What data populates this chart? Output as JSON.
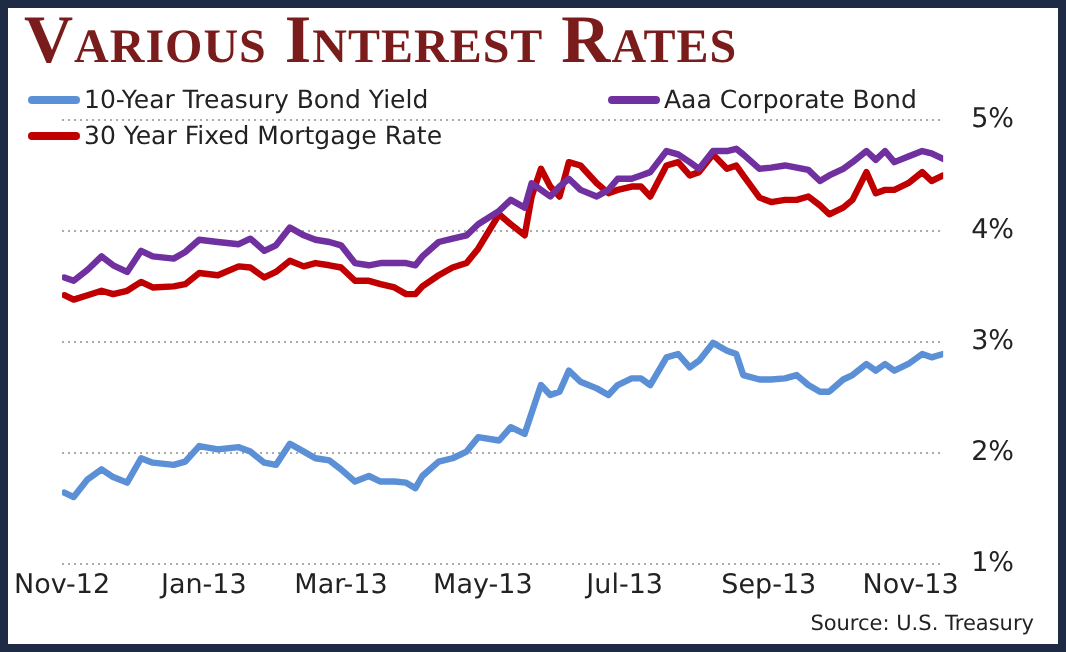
{
  "chart_data": {
    "type": "line",
    "title": "Various Interest Rates",
    "x": [
      "2012-11-02",
      "2012-11-06",
      "2012-11-12",
      "2012-11-18",
      "2012-11-23",
      "2012-11-29",
      "2012-12-05",
      "2012-12-10",
      "2012-12-19",
      "2012-12-24",
      "2012-12-30",
      "2013-01-07",
      "2013-01-16",
      "2013-01-21",
      "2013-01-27",
      "2013-02-01",
      "2013-02-07",
      "2013-02-13",
      "2013-02-18",
      "2013-02-24",
      "2013-03-01",
      "2013-03-07",
      "2013-03-13",
      "2013-03-18",
      "2013-03-24",
      "2013-03-29",
      "2013-04-02",
      "2013-04-05",
      "2013-04-12",
      "2013-04-18",
      "2013-04-24",
      "2013-04-29",
      "2013-05-08",
      "2013-05-13",
      "2013-05-19",
      "2013-05-22",
      "2013-05-26",
      "2013-05-30",
      "2013-06-03",
      "2013-06-07",
      "2013-06-12",
      "2013-06-19",
      "2013-06-24",
      "2013-06-28",
      "2013-07-04",
      "2013-07-08",
      "2013-07-12",
      "2013-07-19",
      "2013-07-24",
      "2013-07-29",
      "2013-08-02",
      "2013-08-08",
      "2013-08-14",
      "2013-08-18",
      "2013-08-21",
      "2013-08-28",
      "2013-09-02",
      "2013-09-08",
      "2013-09-13",
      "2013-09-18",
      "2013-09-23",
      "2013-09-27",
      "2013-10-03",
      "2013-10-07",
      "2013-10-13",
      "2013-10-17",
      "2013-10-21",
      "2013-10-25",
      "2013-10-31",
      "2013-11-06",
      "2013-11-10",
      "2013-11-15"
    ],
    "series": [
      {
        "name": "10-Year Treasury Bond Yield",
        "color": "#5b8fd6",
        "values": [
          1.64,
          1.6,
          1.76,
          1.85,
          1.78,
          1.73,
          1.95,
          1.91,
          1.89,
          1.92,
          2.06,
          2.03,
          2.05,
          2.01,
          1.91,
          1.89,
          2.08,
          2.01,
          1.95,
          1.93,
          1.85,
          1.74,
          1.79,
          1.74,
          1.74,
          1.73,
          1.68,
          1.79,
          1.92,
          1.95,
          2.01,
          2.14,
          2.11,
          2.23,
          2.17,
          2.36,
          2.61,
          2.52,
          2.55,
          2.74,
          2.64,
          2.58,
          2.52,
          2.61,
          2.67,
          2.67,
          2.61,
          2.86,
          2.89,
          2.77,
          2.83,
          2.99,
          2.92,
          2.89,
          2.7,
          2.66,
          2.66,
          2.67,
          2.7,
          2.61,
          2.55,
          2.55,
          2.66,
          2.7,
          2.8,
          2.74,
          2.8,
          2.74,
          2.8,
          2.89,
          2.86,
          2.89
        ]
      },
      {
        "name": "Aaa Corporate Bond",
        "color": "#7030a0",
        "values": [
          3.58,
          3.55,
          3.65,
          3.77,
          3.69,
          3.63,
          3.82,
          3.77,
          3.75,
          3.81,
          3.92,
          3.9,
          3.88,
          3.93,
          3.82,
          3.87,
          4.03,
          3.96,
          3.92,
          3.9,
          3.87,
          3.71,
          3.69,
          3.71,
          3.71,
          3.71,
          3.69,
          3.77,
          3.9,
          3.93,
          3.96,
          4.06,
          4.18,
          4.28,
          4.21,
          4.43,
          4.37,
          4.31,
          4.4,
          4.47,
          4.37,
          4.31,
          4.37,
          4.47,
          4.47,
          4.5,
          4.53,
          4.72,
          4.69,
          4.62,
          4.56,
          4.72,
          4.72,
          4.74,
          4.69,
          4.56,
          4.57,
          4.59,
          4.57,
          4.55,
          4.45,
          4.5,
          4.56,
          4.62,
          4.72,
          4.64,
          4.72,
          4.62,
          4.67,
          4.72,
          4.7,
          4.65
        ]
      },
      {
        "name": "30 Year Fixed Mortgage Rate",
        "color": "#c00000",
        "values": [
          3.42,
          3.38,
          3.42,
          3.46,
          3.43,
          3.46,
          3.54,
          3.49,
          3.5,
          3.52,
          3.62,
          3.6,
          3.68,
          3.67,
          3.58,
          3.63,
          3.73,
          3.68,
          3.71,
          3.69,
          3.67,
          3.55,
          3.55,
          3.52,
          3.49,
          3.43,
          3.43,
          3.5,
          3.6,
          3.67,
          3.71,
          3.84,
          4.15,
          4.06,
          3.96,
          4.31,
          4.56,
          4.4,
          4.31,
          4.62,
          4.59,
          4.43,
          4.34,
          4.37,
          4.4,
          4.4,
          4.31,
          4.59,
          4.62,
          4.5,
          4.53,
          4.69,
          4.56,
          4.59,
          4.5,
          4.3,
          4.26,
          4.28,
          4.28,
          4.31,
          4.23,
          4.15,
          4.21,
          4.28,
          4.53,
          4.34,
          4.37,
          4.37,
          4.43,
          4.53,
          4.45,
          4.5
        ]
      }
    ],
    "xlim": [
      "2012-11-01",
      "2013-11-15"
    ],
    "xticks": [
      {
        "value": "2012-11-01",
        "label": "Nov-12"
      },
      {
        "value": "2013-01-01",
        "label": "Jan-13"
      },
      {
        "value": "2013-03-01",
        "label": "Mar-13"
      },
      {
        "value": "2013-05-01",
        "label": "May-13"
      },
      {
        "value": "2013-07-01",
        "label": "Jul-13"
      },
      {
        "value": "2013-09-01",
        "label": "Sep-13"
      },
      {
        "value": "2013-11-01",
        "label": "Nov-13"
      }
    ],
    "ylim": [
      1,
      5
    ],
    "yticks": [
      {
        "value": 1,
        "label": "1%"
      },
      {
        "value": 2,
        "label": "2%"
      },
      {
        "value": 3,
        "label": "3%"
      },
      {
        "value": 4,
        "label": "4%"
      },
      {
        "value": 5,
        "label": "5%"
      }
    ],
    "grid": "y",
    "legend": "top",
    "annotations": [
      "Source:  U.S. Treasury"
    ]
  }
}
